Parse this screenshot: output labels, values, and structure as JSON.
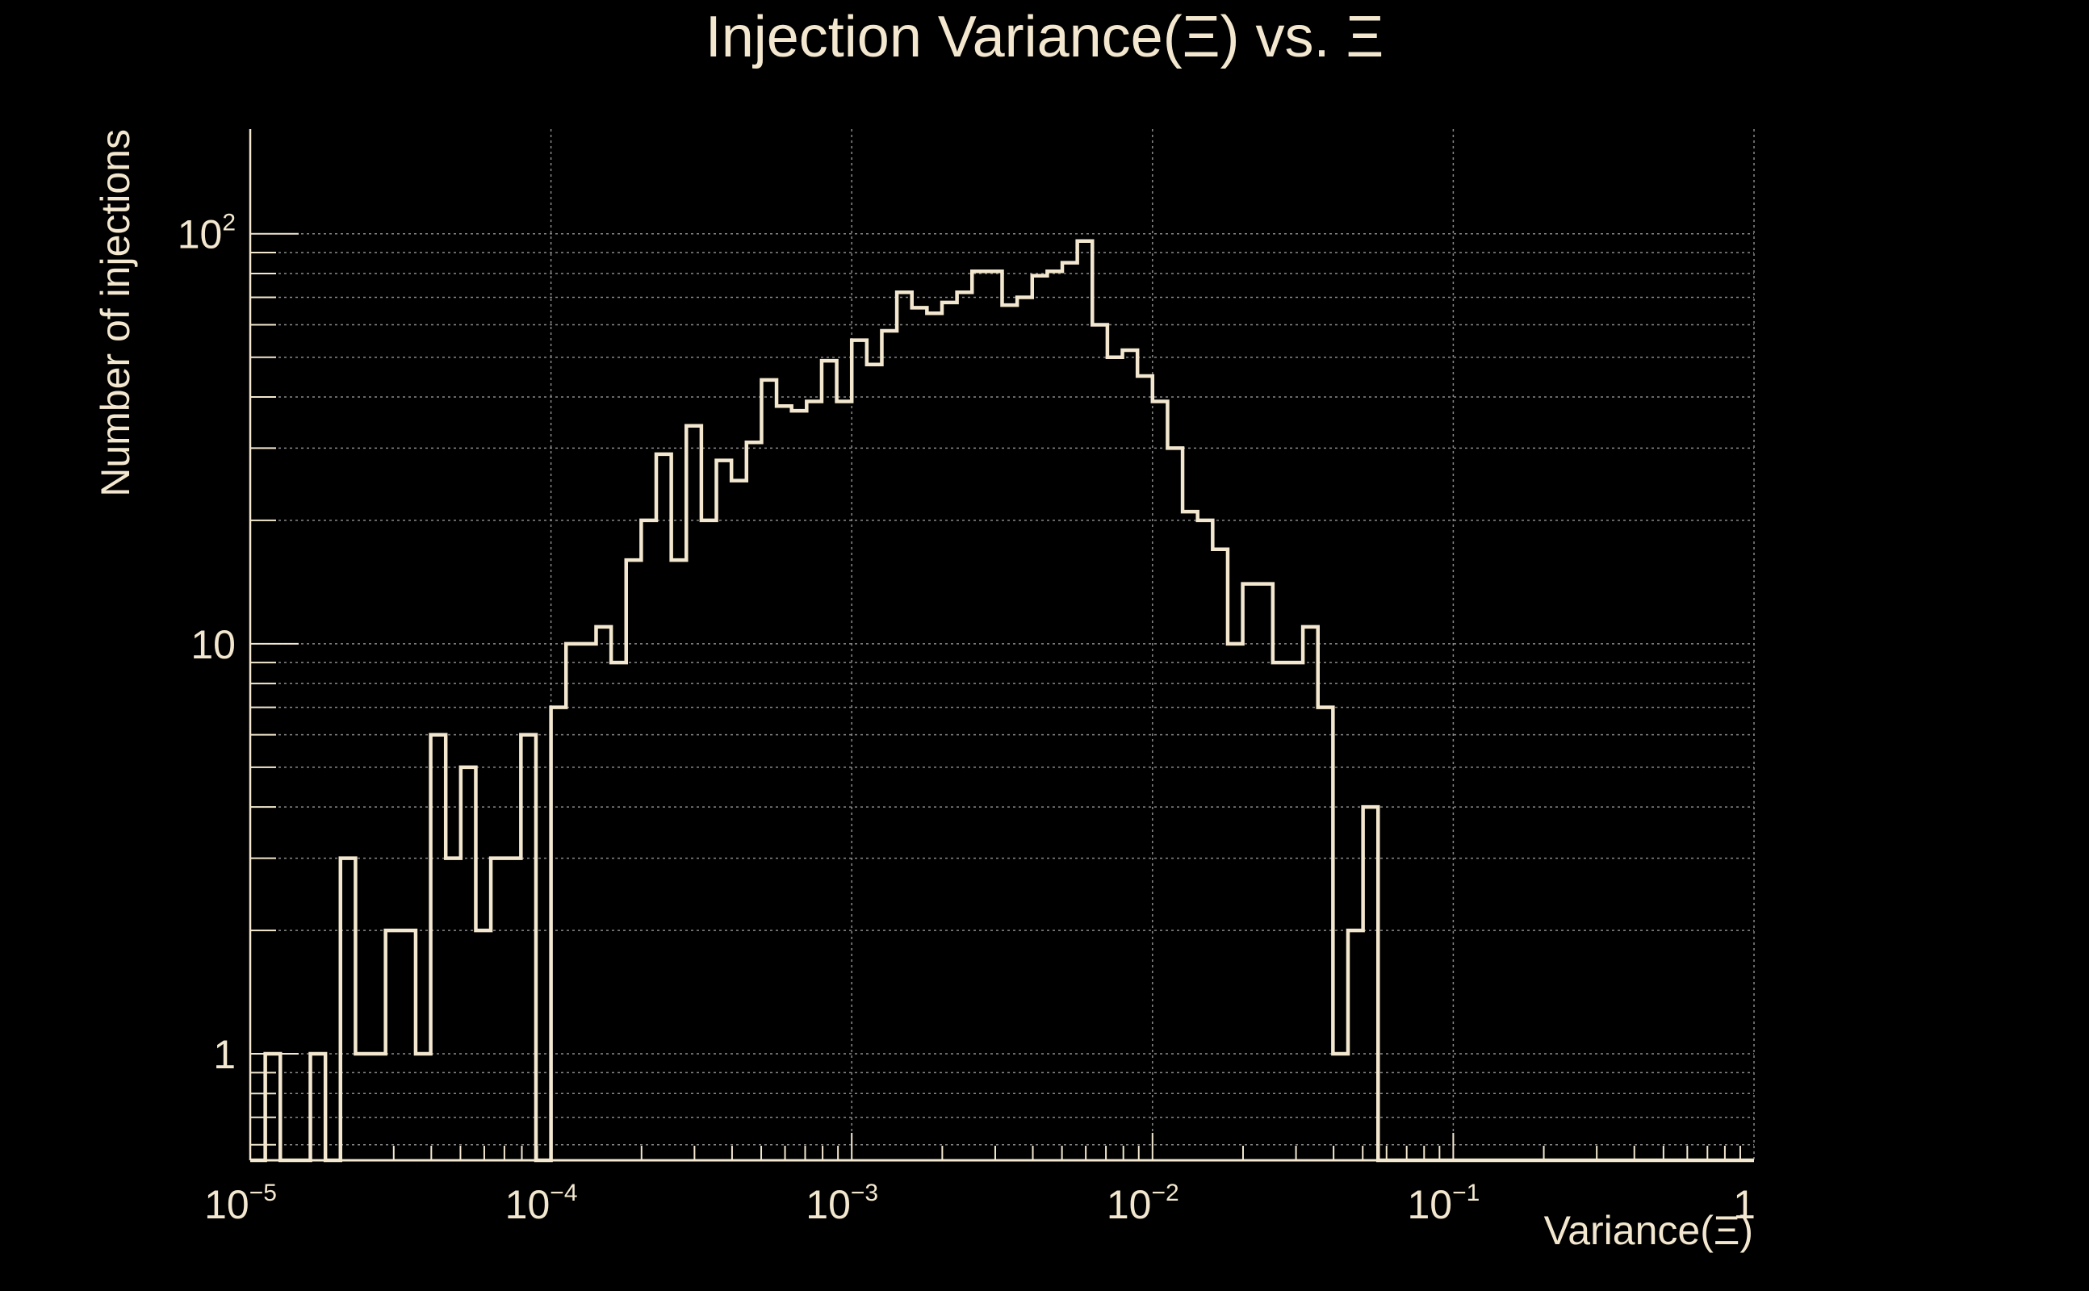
{
  "chart_data": {
    "type": "bar",
    "subtype": "histogram-step",
    "title": "Injection Variance(Ξ) vs. Ξ",
    "xlabel": "Variance(Ξ)",
    "ylabel": "Number of injections",
    "x_scale": "log",
    "y_scale": "log",
    "xlim": [
      1e-05,
      1
    ],
    "ylim": [
      0.55,
      180
    ],
    "grid": true,
    "colors": {
      "background": "#000000",
      "line": "#f3e8cf",
      "grid": "#8a8a8a"
    },
    "x_ticks": [
      {
        "base": "10",
        "exp": "−5",
        "value": 1e-05
      },
      {
        "base": "10",
        "exp": "−4",
        "value": 0.0001
      },
      {
        "base": "10",
        "exp": "−3",
        "value": 0.001
      },
      {
        "base": "10",
        "exp": "−2",
        "value": 0.01
      },
      {
        "base": "10",
        "exp": "−1",
        "value": 0.1
      },
      {
        "base": "1",
        "exp": "",
        "value": 1
      }
    ],
    "y_ticks": [
      {
        "base": "1",
        "exp": "",
        "value": 1
      },
      {
        "base": "10",
        "exp": "",
        "value": 10
      },
      {
        "base": "10",
        "exp": "2",
        "value": 100
      }
    ],
    "bins_per_decade": 20,
    "bin_edges_log10": [
      -5,
      0
    ],
    "values": [
      0,
      1,
      0,
      0,
      1,
      0,
      3,
      1,
      1,
      2,
      2,
      1,
      6,
      3,
      5,
      2,
      3,
      3,
      6,
      0,
      7,
      10,
      10,
      11,
      9,
      16,
      20,
      29,
      16,
      34,
      20,
      28,
      25,
      31,
      44,
      38,
      37,
      39,
      49,
      39,
      55,
      48,
      58,
      72,
      66,
      64,
      68,
      72,
      81,
      81,
      67,
      70,
      79,
      81,
      85,
      96,
      60,
      50,
      52,
      45,
      39,
      30,
      21,
      20,
      17,
      10,
      14,
      14,
      9,
      9,
      11,
      7,
      1,
      2,
      4,
      0,
      0,
      0,
      0,
      0,
      0,
      0,
      0,
      0,
      0,
      0,
      0,
      0,
      0,
      0,
      0,
      0,
      0,
      0,
      0,
      0,
      0,
      0,
      0,
      0
    ]
  }
}
